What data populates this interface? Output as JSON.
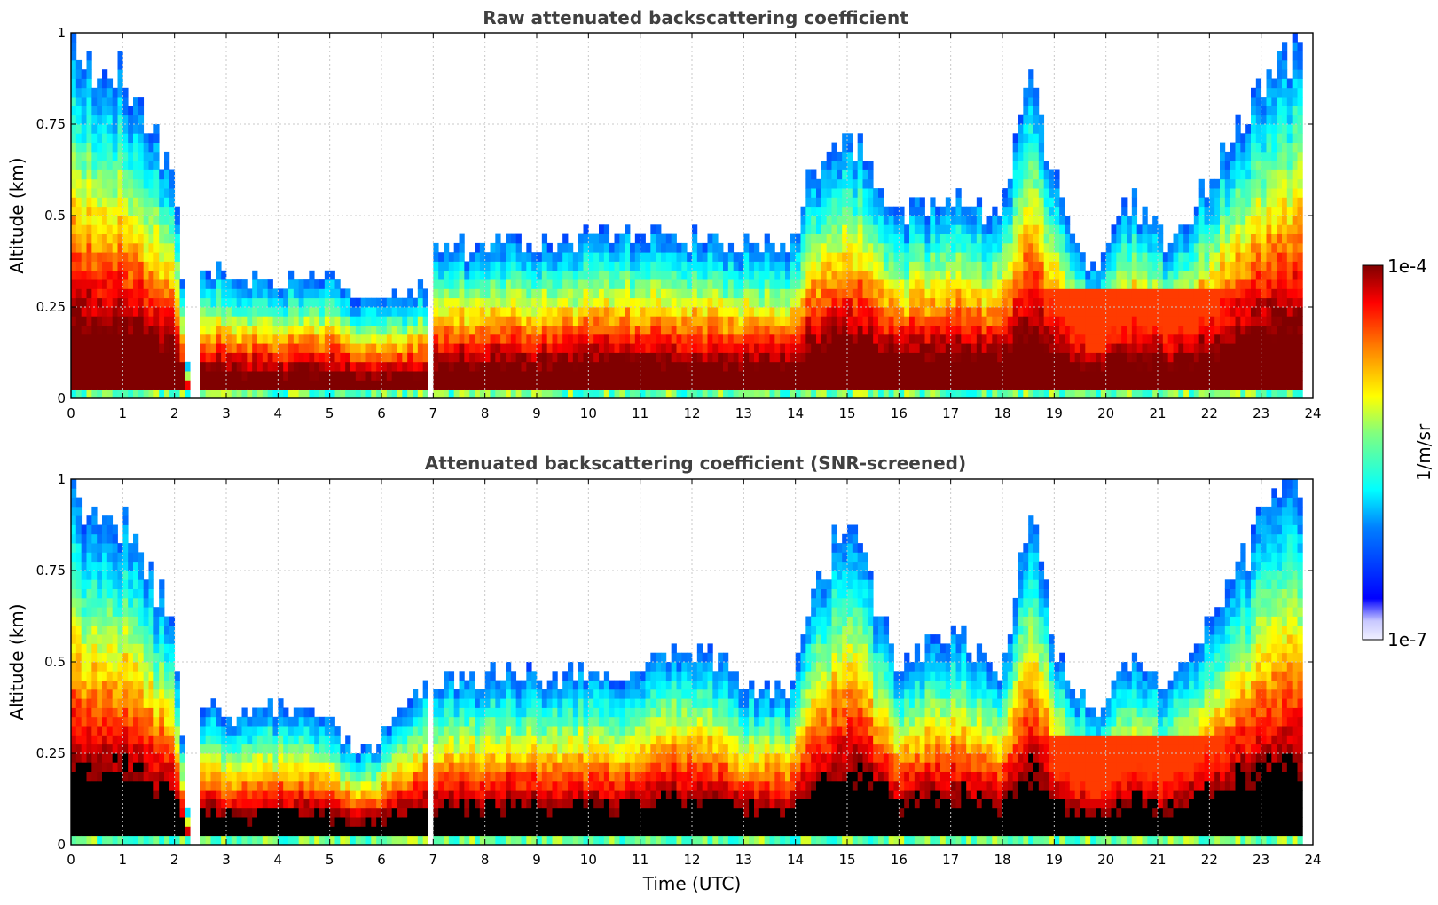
{
  "chart_data": [
    {
      "type": "heatmap",
      "title": "Raw attenuated backscattering coefficient",
      "xlabel": "",
      "ylabel": "Altitude (km)",
      "xlim": [
        0,
        24
      ],
      "ylim": [
        0,
        1
      ],
      "xticks": [
        "0",
        "1",
        "2",
        "3",
        "4",
        "5",
        "6",
        "7",
        "8",
        "9",
        "10",
        "11",
        "12",
        "13",
        "14",
        "15",
        "16",
        "17",
        "18",
        "19",
        "20",
        "21",
        "22",
        "23",
        "24"
      ],
      "yticks": [
        "0",
        "0.25",
        "0.5",
        "0.75",
        "1"
      ],
      "grid": true,
      "screened": false,
      "layer_top_km": [
        [
          0,
          0.95
        ],
        [
          1,
          0.9
        ],
        [
          2,
          0.62
        ],
        [
          2.3,
          0.0
        ],
        [
          2.5,
          0.38
        ],
        [
          3,
          0.33
        ],
        [
          4,
          0.32
        ],
        [
          5,
          0.34
        ],
        [
          5.5,
          0.27
        ],
        [
          6,
          0.28
        ],
        [
          6.9,
          0.3
        ],
        [
          7,
          0.42
        ],
        [
          8,
          0.4
        ],
        [
          8.5,
          0.45
        ],
        [
          9,
          0.42
        ],
        [
          10,
          0.44
        ],
        [
          11,
          0.46
        ],
        [
          12,
          0.44
        ],
        [
          13,
          0.42
        ],
        [
          13.9,
          0.4
        ],
        [
          14.3,
          0.6
        ],
        [
          15,
          0.75
        ],
        [
          16,
          0.5
        ],
        [
          17,
          0.55
        ],
        [
          18,
          0.5
        ],
        [
          18.5,
          0.9
        ],
        [
          19,
          0.6
        ],
        [
          19.7,
          0.35
        ],
        [
          20.5,
          0.55
        ],
        [
          21.2,
          0.42
        ],
        [
          22,
          0.6
        ],
        [
          23,
          0.85
        ],
        [
          23.8,
          1.0
        ]
      ]
    },
    {
      "type": "heatmap",
      "title": "Attenuated backscattering coefficient (SNR-screened)",
      "xlabel": "Time (UTC)",
      "ylabel": "Altitude (km)",
      "xlim": [
        0,
        24
      ],
      "ylim": [
        0,
        1
      ],
      "xticks": [
        "0",
        "1",
        "2",
        "3",
        "4",
        "5",
        "6",
        "7",
        "8",
        "9",
        "10",
        "11",
        "12",
        "13",
        "14",
        "15",
        "16",
        "17",
        "18",
        "19",
        "20",
        "21",
        "22",
        "23",
        "24"
      ],
      "yticks": [
        "0",
        "0.25",
        "0.5",
        "0.75",
        "1"
      ],
      "grid": true,
      "screened": true,
      "layer_top_km": [
        [
          0,
          0.95
        ],
        [
          1,
          0.88
        ],
        [
          2,
          0.6
        ],
        [
          2.3,
          0.0
        ],
        [
          2.5,
          0.4
        ],
        [
          3,
          0.35
        ],
        [
          4,
          0.38
        ],
        [
          5,
          0.34
        ],
        [
          5.5,
          0.25
        ],
        [
          6,
          0.3
        ],
        [
          6.9,
          0.45
        ],
        [
          7,
          0.45
        ],
        [
          8,
          0.45
        ],
        [
          8.5,
          0.48
        ],
        [
          9,
          0.45
        ],
        [
          10,
          0.47
        ],
        [
          11,
          0.48
        ],
        [
          12,
          0.55
        ],
        [
          13,
          0.44
        ],
        [
          13.9,
          0.42
        ],
        [
          14.3,
          0.65
        ],
        [
          15,
          0.9
        ],
        [
          16,
          0.5
        ],
        [
          17,
          0.6
        ],
        [
          18,
          0.45
        ],
        [
          18.5,
          0.95
        ],
        [
          19,
          0.55
        ],
        [
          19.7,
          0.36
        ],
        [
          20.5,
          0.52
        ],
        [
          21.2,
          0.42
        ],
        [
          22,
          0.6
        ],
        [
          23,
          0.88
        ],
        [
          23.8,
          1.0
        ]
      ]
    }
  ],
  "colorbar": {
    "max_label": "1e-4",
    "min_label": "1e-7",
    "unit": "1/m/sr",
    "colormap": "jet",
    "scale": "log"
  },
  "colors": {
    "title": "#404040",
    "grid": "#c8c8c8",
    "saturated_screened": "#000000"
  }
}
